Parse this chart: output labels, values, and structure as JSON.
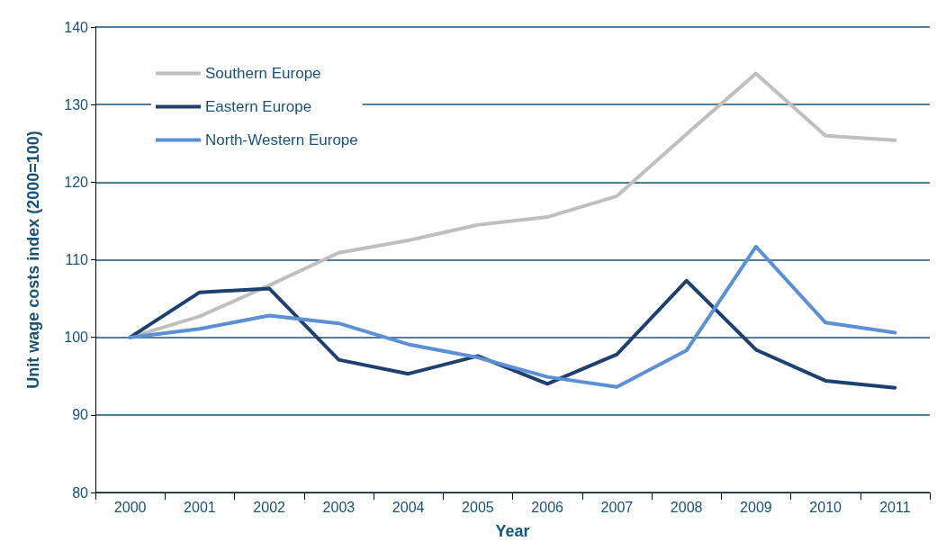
{
  "chart_data": {
    "type": "line",
    "xlabel": "Year",
    "ylabel": "Unit wage costs index (2000=100)",
    "categories": [
      "2000",
      "2001",
      "2002",
      "2003",
      "2004",
      "2005",
      "2006",
      "2007",
      "2008",
      "2009",
      "2010",
      "2011"
    ],
    "series": [
      {
        "name": "Southern Europe",
        "color": "#bfbfbf",
        "values": [
          100,
          102.7,
          106.7,
          110.9,
          112.5,
          114.5,
          115.5,
          118.2,
          126.2,
          134.0,
          126.0,
          125.4
        ]
      },
      {
        "name": "Eastern Europe",
        "color": "#1f3f6e",
        "values": [
          100,
          105.8,
          106.3,
          97.1,
          95.3,
          97.6,
          94.0,
          97.8,
          107.3,
          98.4,
          94.4,
          93.5
        ]
      },
      {
        "name": "North-Western Europe",
        "color": "#5b8fd6",
        "values": [
          100,
          101.1,
          102.8,
          101.8,
          99.1,
          97.4,
          94.9,
          93.6,
          98.3,
          111.7,
          101.9,
          100.6
        ]
      }
    ],
    "ylim": [
      80,
      140
    ],
    "yticks": [
      80,
      90,
      100,
      110,
      120,
      130,
      140
    ],
    "grid": "y",
    "legend": "top left",
    "marker": "none",
    "line_style": "solid"
  }
}
